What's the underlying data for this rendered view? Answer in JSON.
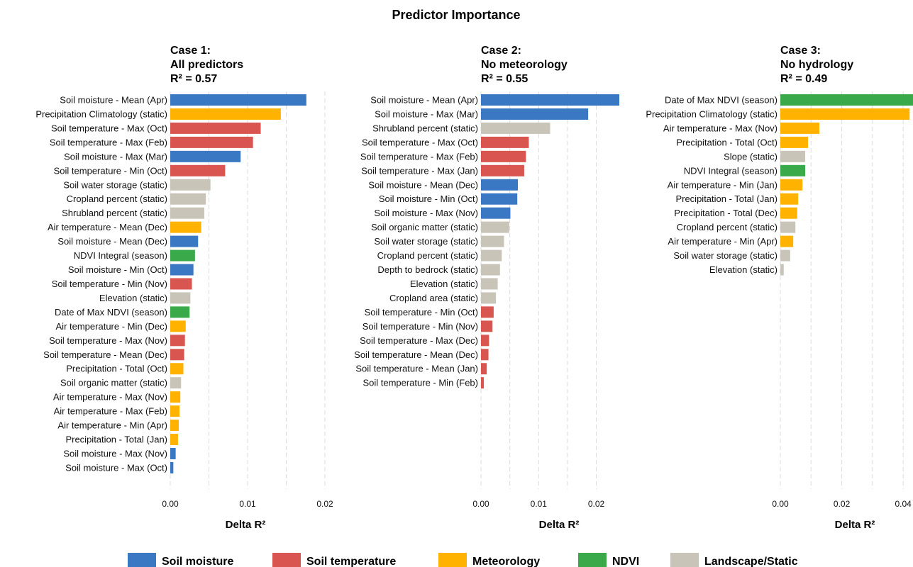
{
  "title": "Predictor Importance",
  "colors": {
    "soil_moisture": "#3a78c3",
    "soil_temperature": "#d95550",
    "meteorology": "#ffb300",
    "ndvi": "#3aa94a",
    "landscape": "#c8c4b8"
  },
  "legend": [
    {
      "key": "soil_moisture",
      "label": "Soil moisture"
    },
    {
      "key": "soil_temperature",
      "label": "Soil temperature"
    },
    {
      "key": "meteorology",
      "label": "Meteorology"
    },
    {
      "key": "ndvi",
      "label": "NDVI"
    },
    {
      "key": "landscape",
      "label": "Landscape/Static"
    }
  ],
  "chart_data": [
    {
      "type": "bar",
      "orientation": "horizontal",
      "title_lines": [
        "Case 1:",
        "All predictors",
        "R² = 0.57"
      ],
      "xlabel": "Delta R²",
      "xlim": [
        0,
        0.02
      ],
      "xticks": [
        0.0,
        0.01,
        0.02
      ],
      "xtick_labels": [
        "0.00",
        "0.01",
        "0.02"
      ],
      "bars": [
        {
          "label": "Soil moisture - Mean (Apr)",
          "value": 0.0176,
          "group": "soil_moisture"
        },
        {
          "label": "Precipitation Climatology (static)",
          "value": 0.0143,
          "group": "meteorology"
        },
        {
          "label": "Soil temperature - Max (Oct)",
          "value": 0.0117,
          "group": "soil_temperature"
        },
        {
          "label": "Soil temperature - Max (Feb)",
          "value": 0.0107,
          "group": "soil_temperature"
        },
        {
          "label": "Soil moisture - Max (Mar)",
          "value": 0.0091,
          "group": "soil_moisture"
        },
        {
          "label": "Soil temperature - Min (Oct)",
          "value": 0.0071,
          "group": "soil_temperature"
        },
        {
          "label": "Soil water storage (static)",
          "value": 0.0052,
          "group": "landscape"
        },
        {
          "label": "Cropland percent (static)",
          "value": 0.0046,
          "group": "landscape"
        },
        {
          "label": "Shrubland percent (static)",
          "value": 0.0044,
          "group": "landscape"
        },
        {
          "label": "Air temperature - Mean (Dec)",
          "value": 0.004,
          "group": "meteorology"
        },
        {
          "label": "Soil moisture - Mean (Dec)",
          "value": 0.0036,
          "group": "soil_moisture"
        },
        {
          "label": "NDVI Integral (season)",
          "value": 0.0032,
          "group": "ndvi"
        },
        {
          "label": "Soil moisture - Min (Oct)",
          "value": 0.003,
          "group": "soil_moisture"
        },
        {
          "label": "Soil temperature - Min (Nov)",
          "value": 0.0028,
          "group": "soil_temperature"
        },
        {
          "label": "Elevation (static)",
          "value": 0.0026,
          "group": "landscape"
        },
        {
          "label": "Date of Max NDVI (season)",
          "value": 0.0025,
          "group": "ndvi"
        },
        {
          "label": "Air temperature - Min (Dec)",
          "value": 0.002,
          "group": "meteorology"
        },
        {
          "label": "Soil temperature - Max (Nov)",
          "value": 0.0019,
          "group": "soil_temperature"
        },
        {
          "label": "Soil temperature - Mean (Dec)",
          "value": 0.0018,
          "group": "soil_temperature"
        },
        {
          "label": "Precipitation - Total (Oct)",
          "value": 0.0017,
          "group": "meteorology"
        },
        {
          "label": "Soil organic matter (static)",
          "value": 0.0014,
          "group": "landscape"
        },
        {
          "label": "Air temperature - Max (Nov)",
          "value": 0.0013,
          "group": "meteorology"
        },
        {
          "label": "Air temperature - Max (Feb)",
          "value": 0.0012,
          "group": "meteorology"
        },
        {
          "label": "Air temperature - Min (Apr)",
          "value": 0.0011,
          "group": "meteorology"
        },
        {
          "label": "Precipitation - Total (Jan)",
          "value": 0.001,
          "group": "meteorology"
        },
        {
          "label": "Soil moisture - Max (Nov)",
          "value": 0.0007,
          "group": "soil_moisture"
        },
        {
          "label": "Soil moisture - Max (Oct)",
          "value": 0.0004,
          "group": "soil_moisture"
        }
      ]
    },
    {
      "type": "bar",
      "orientation": "horizontal",
      "title_lines": [
        "Case 2:",
        "No meteorology",
        "R² = 0.55"
      ],
      "xlabel": "Delta R²",
      "xlim": [
        0,
        0.024
      ],
      "xticks": [
        0.0,
        0.01,
        0.02
      ],
      "xtick_labels": [
        "0.00",
        "0.01",
        "0.02"
      ],
      "bars": [
        {
          "label": "Soil moisture - Mean (Apr)",
          "value": 0.024,
          "group": "soil_moisture"
        },
        {
          "label": "Soil moisture - Max (Mar)",
          "value": 0.0186,
          "group": "soil_moisture"
        },
        {
          "label": "Shrubland percent (static)",
          "value": 0.012,
          "group": "landscape"
        },
        {
          "label": "Soil temperature - Max (Oct)",
          "value": 0.0083,
          "group": "soil_temperature"
        },
        {
          "label": "Soil temperature - Max (Feb)",
          "value": 0.0078,
          "group": "soil_temperature"
        },
        {
          "label": "Soil temperature - Max (Jan)",
          "value": 0.0075,
          "group": "soil_temperature"
        },
        {
          "label": "Soil moisture - Mean (Dec)",
          "value": 0.0064,
          "group": "soil_moisture"
        },
        {
          "label": "Soil moisture - Min (Oct)",
          "value": 0.0063,
          "group": "soil_moisture"
        },
        {
          "label": "Soil moisture - Max (Nov)",
          "value": 0.0051,
          "group": "soil_moisture"
        },
        {
          "label": "Soil organic matter (static)",
          "value": 0.0049,
          "group": "landscape"
        },
        {
          "label": "Soil water storage (static)",
          "value": 0.004,
          "group": "landscape"
        },
        {
          "label": "Cropland percent (static)",
          "value": 0.0036,
          "group": "landscape"
        },
        {
          "label": "Depth to bedrock (static)",
          "value": 0.0033,
          "group": "landscape"
        },
        {
          "label": "Elevation (static)",
          "value": 0.0029,
          "group": "landscape"
        },
        {
          "label": "Cropland area (static)",
          "value": 0.0026,
          "group": "landscape"
        },
        {
          "label": "Soil temperature - Min (Oct)",
          "value": 0.0022,
          "group": "soil_temperature"
        },
        {
          "label": "Soil temperature - Min (Nov)",
          "value": 0.002,
          "group": "soil_temperature"
        },
        {
          "label": "Soil temperature - Max (Dec)",
          "value": 0.0014,
          "group": "soil_temperature"
        },
        {
          "label": "Soil temperature - Mean (Dec)",
          "value": 0.0013,
          "group": "soil_temperature"
        },
        {
          "label": "Soil temperature - Mean (Jan)",
          "value": 0.001,
          "group": "soil_temperature"
        },
        {
          "label": "Soil temperature - Min (Feb)",
          "value": 0.0005,
          "group": "soil_temperature"
        }
      ]
    },
    {
      "type": "bar",
      "orientation": "horizontal",
      "title_lines": [
        "Case 3:",
        "No hydrology",
        "R² = 0.49"
      ],
      "xlabel": "Delta R²",
      "xlim": [
        0,
        0.0432
      ],
      "xticks": [
        0.0,
        0.02,
        0.04
      ],
      "xtick_labels": [
        "0.00",
        "0.02",
        "0.04"
      ],
      "bars": [
        {
          "label": "Date of Max NDVI (season)",
          "value": 0.0432,
          "group": "ndvi"
        },
        {
          "label": "Precipitation Climatology (static)",
          "value": 0.0421,
          "group": "meteorology"
        },
        {
          "label": "Air temperature - Max (Nov)",
          "value": 0.0127,
          "group": "meteorology"
        },
        {
          "label": "Precipitation - Total (Oct)",
          "value": 0.009,
          "group": "meteorology"
        },
        {
          "label": "Slope (static)",
          "value": 0.0081,
          "group": "landscape"
        },
        {
          "label": "NDVI Integral (season)",
          "value": 0.0081,
          "group": "ndvi"
        },
        {
          "label": "Air temperature - Min (Jan)",
          "value": 0.0072,
          "group": "meteorology"
        },
        {
          "label": "Precipitation - Total (Jan)",
          "value": 0.0058,
          "group": "meteorology"
        },
        {
          "label": "Precipitation - Total (Dec)",
          "value": 0.0055,
          "group": "meteorology"
        },
        {
          "label": "Cropland percent (static)",
          "value": 0.0049,
          "group": "landscape"
        },
        {
          "label": "Air temperature - Min (Apr)",
          "value": 0.0042,
          "group": "meteorology"
        },
        {
          "label": "Soil water storage (static)",
          "value": 0.0032,
          "group": "landscape"
        },
        {
          "label": "Elevation (static)",
          "value": 0.0011,
          "group": "landscape"
        }
      ]
    }
  ]
}
